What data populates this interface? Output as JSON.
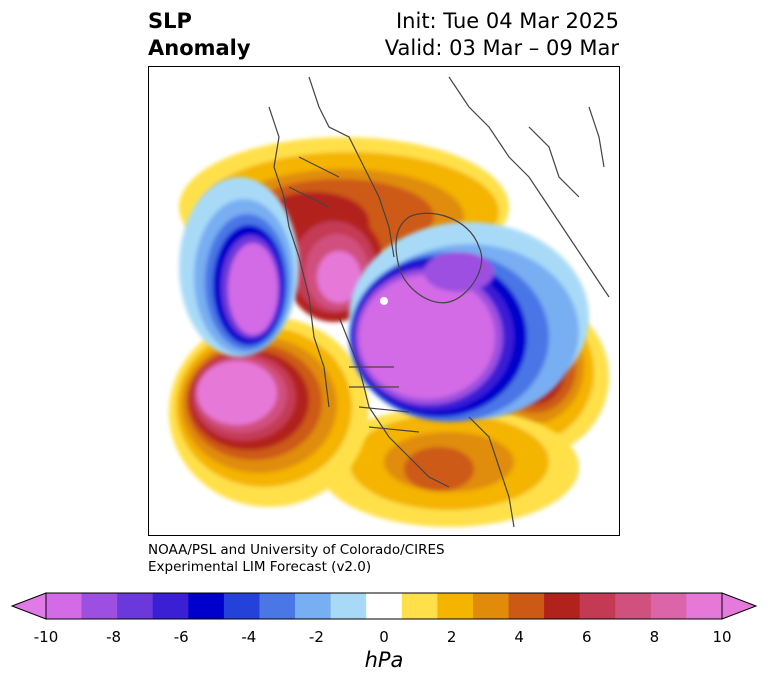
{
  "header": {
    "title_line1": "SLP",
    "title_line2": "Anomaly",
    "init": "Init: Tue 04 Mar 2025",
    "valid": "Valid: 03 Mar – 09 Mar"
  },
  "credit": {
    "line1": "NOAA/PSL and University of Colorado/CIRES",
    "line2": "Experimental LIM Forecast (v2.0)"
  },
  "colorbar": {
    "unit": "hPa",
    "ticks": [
      "-10",
      "-8",
      "-6",
      "-4",
      "-2",
      "0",
      "2",
      "4",
      "6",
      "8",
      "10"
    ],
    "colors": [
      "#d36be6",
      "#9c4fe0",
      "#6a38db",
      "#3a1fd4",
      "#0000cd",
      "#2442d9",
      "#4a76e6",
      "#78aef2",
      "#a8daf8",
      "#ffffff",
      "#ffe04a",
      "#f4b400",
      "#e08c0a",
      "#cd5a14",
      "#b2221c",
      "#c43a55",
      "#d0507e",
      "#dc64a8",
      "#e678d8"
    ],
    "under_color": "#e07ae6",
    "over_color": "#e67adc"
  },
  "map": {
    "projection": "north-polar-stereographic",
    "anomalies": [
      {
        "label": "negative center over Arctic / Canada",
        "sign": "negative"
      },
      {
        "label": "negative center over North Pacific (west)",
        "sign": "negative"
      },
      {
        "label": "positive center over Bering/Alaska",
        "sign": "positive"
      },
      {
        "label": "positive center over North Pacific (east)",
        "sign": "positive"
      },
      {
        "label": "positive center over Eurasia",
        "sign": "positive"
      },
      {
        "label": "positive anomaly over North Atlantic",
        "sign": "positive"
      }
    ]
  }
}
